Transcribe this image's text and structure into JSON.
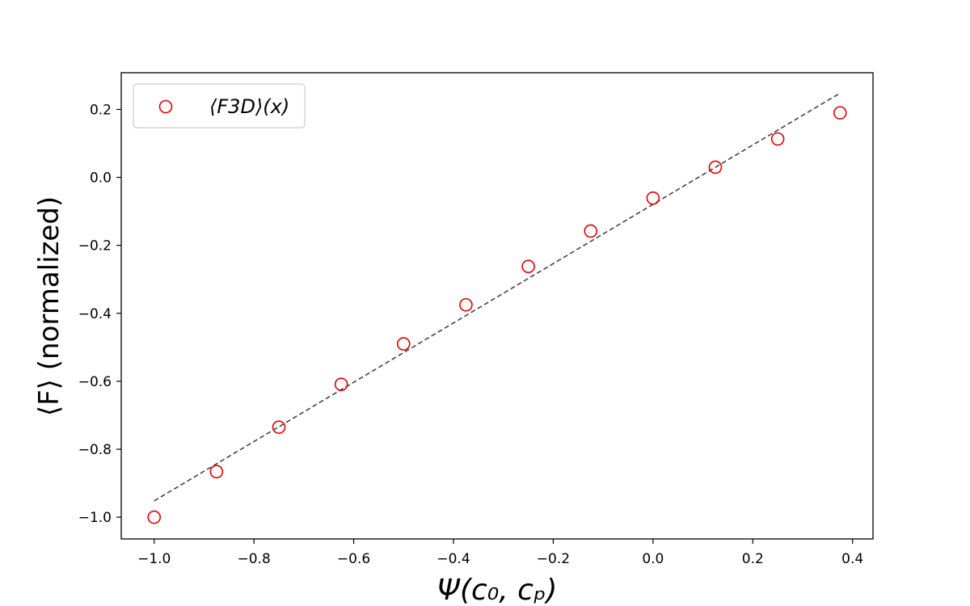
{
  "chart_data": {
    "type": "scatter",
    "xlabel": "Ψ(c₀, cₚ)",
    "ylabel": "⟨F⟩ (normalized)",
    "xlim": [
      -1.066,
      0.441
    ],
    "ylim": [
      -1.064,
      0.308
    ],
    "x_ticks": [
      -1.0,
      -0.8,
      -0.6,
      -0.4,
      -0.2,
      0.0,
      0.2,
      0.4
    ],
    "x_tick_labels": [
      "−1.0",
      "−0.8",
      "−0.6",
      "−0.4",
      "−0.2",
      "0.0",
      "0.2",
      "0.4"
    ],
    "y_ticks": [
      -1.0,
      -0.8,
      -0.6,
      -0.4,
      -0.2,
      0.0,
      0.2
    ],
    "y_tick_labels": [
      "−1.0",
      "−0.8",
      "−0.6",
      "−0.4",
      "−0.2",
      "0.0",
      "0.2"
    ],
    "grid": false,
    "legend_position": "top-left",
    "series": [
      {
        "name": "⟨F3D⟩(x)",
        "kind": "scatter",
        "marker": "open-circle",
        "color": "#e00000",
        "x": [
          -1.0,
          -0.875,
          -0.75,
          -0.625,
          -0.5,
          -0.375,
          -0.25,
          -0.125,
          0.0,
          0.125,
          0.25,
          0.375
        ],
        "y": [
          -1.0,
          -0.866,
          -0.735,
          -0.609,
          -0.49,
          -0.375,
          -0.262,
          -0.158,
          -0.061,
          0.03,
          0.113,
          0.19
        ]
      },
      {
        "kind": "line",
        "style": "dashed",
        "color": "#444444",
        "x": [
          -1.0,
          0.375
        ],
        "y": [
          -0.952,
          0.248
        ]
      }
    ]
  }
}
